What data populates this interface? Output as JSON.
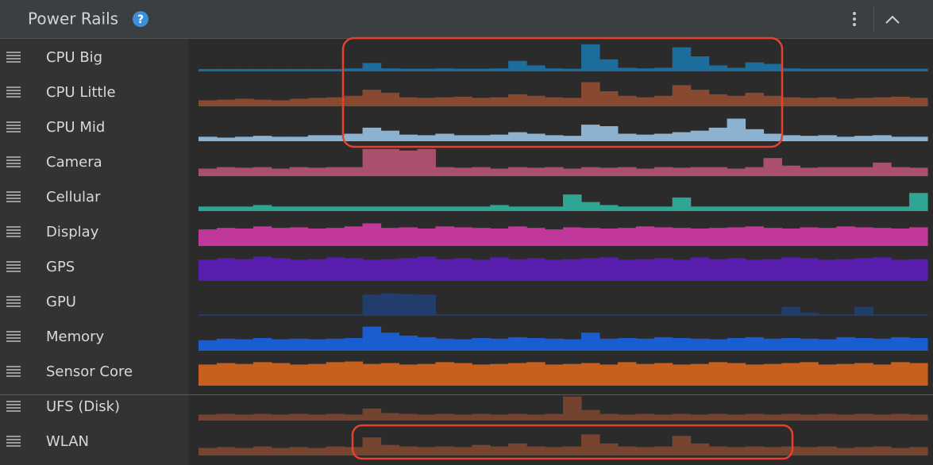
{
  "header": {
    "title": "Power Rails",
    "help_icon": "?"
  },
  "rails": [
    {
      "name": "CPU Big",
      "color": "#1d6d9c",
      "values": [
        8,
        8,
        8,
        8,
        8,
        8,
        8,
        8,
        10,
        28,
        10,
        9,
        9,
        10,
        9,
        9,
        10,
        35,
        20,
        10,
        9,
        90,
        40,
        12,
        10,
        12,
        80,
        50,
        20,
        12,
        30,
        25,
        10,
        9,
        9,
        9,
        9,
        9,
        9,
        9
      ]
    },
    {
      "name": "CPU Little",
      "color": "#87492f",
      "values": [
        20,
        22,
        25,
        22,
        20,
        25,
        28,
        30,
        35,
        55,
        45,
        30,
        28,
        30,
        32,
        28,
        30,
        40,
        35,
        30,
        28,
        80,
        50,
        35,
        30,
        35,
        70,
        55,
        40,
        35,
        45,
        35,
        30,
        28,
        30,
        25,
        28,
        30,
        32,
        28
      ]
    },
    {
      "name": "CPU Mid",
      "color": "#8db2cf",
      "values": [
        15,
        12,
        15,
        18,
        15,
        15,
        20,
        20,
        25,
        45,
        35,
        22,
        20,
        25,
        20,
        20,
        22,
        30,
        25,
        20,
        18,
        55,
        50,
        25,
        22,
        25,
        30,
        35,
        45,
        75,
        40,
        25,
        20,
        18,
        20,
        15,
        18,
        20,
        15,
        15
      ]
    },
    {
      "name": "Camera",
      "color": "#ab4f6e",
      "values": [
        25,
        30,
        28,
        30,
        25,
        30,
        28,
        30,
        30,
        90,
        90,
        85,
        90,
        30,
        28,
        30,
        25,
        30,
        28,
        30,
        25,
        30,
        28,
        30,
        25,
        30,
        28,
        30,
        30,
        25,
        30,
        60,
        35,
        28,
        30,
        30,
        30,
        45,
        30,
        28
      ]
    },
    {
      "name": "Cellular",
      "color": "#2fa594",
      "values": [
        15,
        15,
        15,
        20,
        15,
        15,
        15,
        15,
        15,
        15,
        15,
        15,
        15,
        15,
        15,
        15,
        20,
        15,
        15,
        15,
        55,
        30,
        20,
        15,
        15,
        15,
        45,
        15,
        15,
        15,
        15,
        15,
        15,
        15,
        15,
        15,
        15,
        15,
        15,
        60
      ]
    },
    {
      "name": "Display",
      "color": "#c2379a",
      "values": [
        55,
        60,
        58,
        65,
        60,
        62,
        58,
        60,
        65,
        75,
        60,
        62,
        58,
        65,
        62,
        60,
        58,
        65,
        60,
        55,
        62,
        60,
        58,
        60,
        65,
        62,
        60,
        58,
        60,
        62,
        65,
        60,
        58,
        62,
        60,
        65,
        62,
        60,
        58,
        62
      ]
    },
    {
      "name": "GPS",
      "color": "#5a1eae",
      "values": [
        70,
        75,
        72,
        80,
        75,
        70,
        72,
        78,
        75,
        70,
        72,
        75,
        80,
        72,
        75,
        70,
        78,
        72,
        75,
        70,
        72,
        75,
        78,
        70,
        72,
        75,
        70,
        78,
        72,
        75,
        70,
        72,
        78,
        75,
        70,
        72,
        75,
        78,
        70,
        72
      ]
    },
    {
      "name": "GPU",
      "color": "#213d6b",
      "values": [
        5,
        5,
        5,
        5,
        5,
        5,
        5,
        5,
        5,
        70,
        75,
        72,
        70,
        5,
        5,
        5,
        5,
        5,
        5,
        5,
        5,
        5,
        5,
        5,
        5,
        5,
        5,
        5,
        5,
        5,
        5,
        5,
        30,
        10,
        5,
        5,
        30,
        5,
        5,
        5
      ]
    },
    {
      "name": "Memory",
      "color": "#1a5dd0",
      "values": [
        35,
        40,
        38,
        42,
        38,
        40,
        38,
        40,
        42,
        80,
        60,
        50,
        45,
        40,
        38,
        42,
        40,
        45,
        42,
        40,
        38,
        60,
        40,
        42,
        40,
        45,
        42,
        40,
        38,
        42,
        45,
        40,
        42,
        40,
        38,
        45,
        42,
        40,
        45,
        42
      ]
    },
    {
      "name": "Sensor Core",
      "color": "#c75f1e",
      "values": [
        70,
        75,
        72,
        78,
        75,
        70,
        72,
        78,
        80,
        72,
        75,
        70,
        72,
        78,
        75,
        70,
        72,
        75,
        78,
        70,
        72,
        75,
        70,
        78,
        72,
        75,
        70,
        72,
        78,
        75,
        70,
        72,
        75,
        78,
        70,
        72,
        75,
        70,
        78,
        75
      ]
    },
    {
      "name": "UFS (Disk)",
      "color": "#744330",
      "values": [
        20,
        22,
        20,
        22,
        20,
        22,
        20,
        22,
        20,
        40,
        25,
        22,
        20,
        22,
        20,
        22,
        20,
        22,
        20,
        22,
        80,
        35,
        22,
        20,
        22,
        20,
        22,
        20,
        22,
        20,
        22,
        20,
        22,
        20,
        22,
        20,
        22,
        20,
        22,
        20
      ]
    },
    {
      "name": "WLAN",
      "color": "#774430",
      "values": [
        25,
        28,
        25,
        30,
        25,
        28,
        25,
        30,
        28,
        60,
        35,
        30,
        28,
        30,
        28,
        35,
        30,
        40,
        30,
        28,
        30,
        70,
        40,
        30,
        28,
        30,
        65,
        40,
        30,
        28,
        30,
        28,
        30,
        28,
        30,
        25,
        28,
        30,
        25,
        28
      ]
    }
  ]
}
